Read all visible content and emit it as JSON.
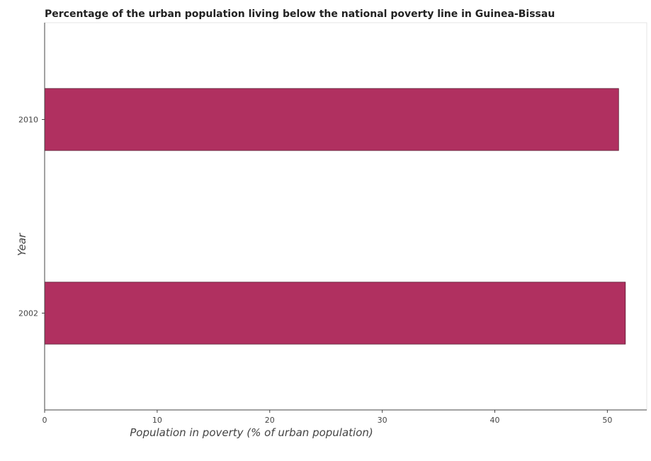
{
  "chart_data": {
    "type": "bar",
    "orientation": "horizontal",
    "title": "Percentage of the urban population living below the national poverty line in Guinea-Bissau",
    "xlabel": "Population in poverty (% of urban population)",
    "ylabel": "Year",
    "categories": [
      "2010",
      "2002"
    ],
    "values": [
      51.0,
      51.6
    ],
    "xlim": [
      0,
      53.5
    ],
    "xticks": [
      0,
      10,
      20,
      30,
      40,
      50
    ],
    "bar_color": "#b03060",
    "grid": false
  }
}
